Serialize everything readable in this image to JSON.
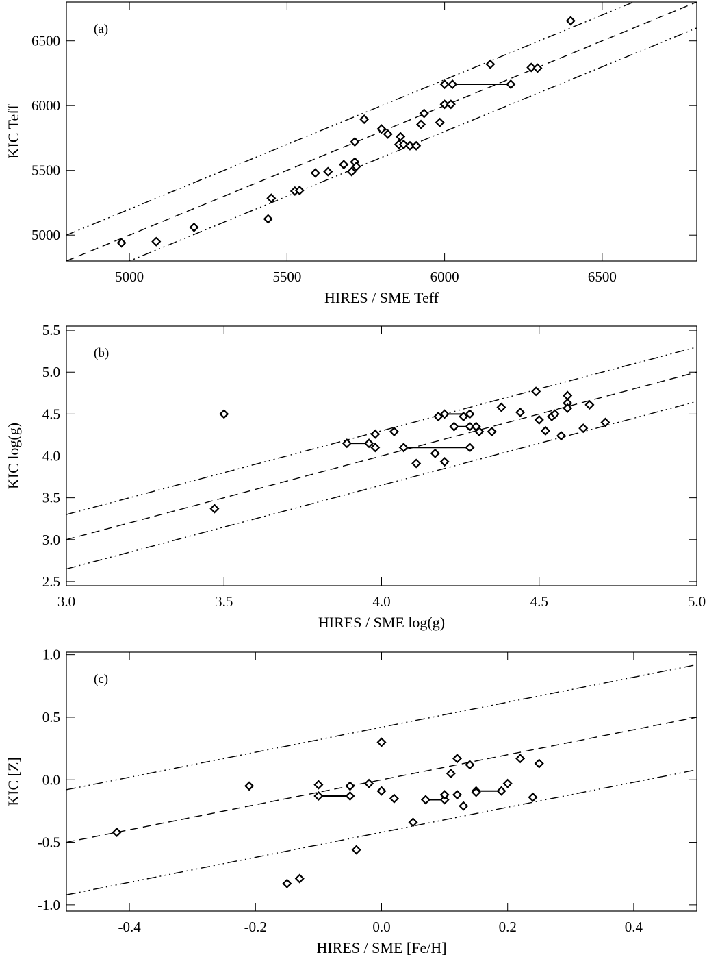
{
  "chart_data": [
    {
      "panel": "(a)",
      "type": "scatter",
      "xlabel": "HIRES / SME Teff",
      "ylabel": "KIC Teff",
      "xlim": [
        4800,
        6800
      ],
      "ylim": [
        4800,
        6800
      ],
      "xticks": [
        5000,
        5500,
        6000,
        6500
      ],
      "yticks": [
        5000,
        5500,
        6000,
        6500
      ],
      "reference_lines": [
        {
          "style": "dashed",
          "name": "one-to-one",
          "offset": 0
        },
        {
          "style": "dash-dot-dot",
          "name": "upper",
          "offset": 200
        },
        {
          "style": "dash-dot-dot",
          "name": "lower",
          "offset": -200
        }
      ],
      "points": [
        [
          4975,
          4940
        ],
        [
          5085,
          4950
        ],
        [
          5205,
          5060
        ],
        [
          5440,
          5125
        ],
        [
          5450,
          5285
        ],
        [
          5525,
          5340
        ],
        [
          5540,
          5345
        ],
        [
          5590,
          5480
        ],
        [
          5630,
          5490
        ],
        [
          5680,
          5545
        ],
        [
          5705,
          5490
        ],
        [
          5715,
          5565
        ],
        [
          5720,
          5530
        ],
        [
          5715,
          5720
        ],
        [
          5745,
          5895
        ],
        [
          5800,
          5820
        ],
        [
          5820,
          5780
        ],
        [
          5855,
          5700
        ],
        [
          5860,
          5760
        ],
        [
          5870,
          5700
        ],
        [
          5890,
          5690
        ],
        [
          5910,
          5690
        ],
        [
          5925,
          5855
        ],
        [
          5935,
          5940
        ],
        [
          5985,
          5870
        ],
        [
          6000,
          6010
        ],
        [
          6020,
          6010
        ],
        [
          6000,
          6165
        ],
        [
          6025,
          6165
        ],
        [
          6210,
          6165
        ],
        [
          6145,
          6320
        ],
        [
          6275,
          6295
        ],
        [
          6295,
          6290
        ],
        [
          6400,
          6655
        ]
      ],
      "connectors": [
        [
          [
            6025,
            6165
          ],
          [
            6210,
            6165
          ]
        ]
      ]
    },
    {
      "panel": "(b)",
      "type": "scatter",
      "xlabel": "HIRES / SME log(g)",
      "ylabel": "KIC log(g)",
      "xlim": [
        3.0,
        5.0
      ],
      "ylim": [
        2.45,
        5.55
      ],
      "xticks": [
        3.0,
        3.5,
        4.0,
        4.5,
        5.0
      ],
      "yticks": [
        2.5,
        3.0,
        3.5,
        4.0,
        4.5,
        5.0,
        5.5
      ],
      "reference_lines": [
        {
          "style": "dashed",
          "name": "one-to-one",
          "offset": 0
        },
        {
          "style": "dash-dot-dot",
          "name": "upper",
          "offset": 0.3
        },
        {
          "style": "dash-dot-dot",
          "name": "lower",
          "offset": -0.35
        }
      ],
      "points": [
        [
          3.47,
          3.37
        ],
        [
          3.5,
          4.5
        ],
        [
          3.89,
          4.15
        ],
        [
          3.96,
          4.15
        ],
        [
          3.98,
          4.1
        ],
        [
          3.98,
          4.26
        ],
        [
          4.04,
          4.29
        ],
        [
          4.07,
          4.1
        ],
        [
          4.11,
          3.91
        ],
        [
          4.17,
          4.03
        ],
        [
          4.2,
          3.93
        ],
        [
          4.18,
          4.47
        ],
        [
          4.2,
          4.5
        ],
        [
          4.23,
          4.35
        ],
        [
          4.26,
          4.47
        ],
        [
          4.28,
          4.5
        ],
        [
          4.28,
          4.35
        ],
        [
          4.28,
          4.1
        ],
        [
          4.3,
          4.35
        ],
        [
          4.31,
          4.29
        ],
        [
          4.35,
          4.29
        ],
        [
          4.38,
          4.58
        ],
        [
          4.44,
          4.52
        ],
        [
          4.49,
          4.77
        ],
        [
          4.5,
          4.43
        ],
        [
          4.52,
          4.3
        ],
        [
          4.54,
          4.47
        ],
        [
          4.55,
          4.5
        ],
        [
          4.57,
          4.24
        ],
        [
          4.59,
          4.72
        ],
        [
          4.59,
          4.63
        ],
        [
          4.59,
          4.57
        ],
        [
          4.64,
          4.33
        ],
        [
          4.66,
          4.61
        ],
        [
          4.71,
          4.4
        ]
      ],
      "connectors": [
        [
          [
            3.89,
            4.15
          ],
          [
            3.96,
            4.15
          ]
        ],
        [
          [
            4.07,
            4.1
          ],
          [
            4.28,
            4.1
          ]
        ],
        [
          [
            4.2,
            4.5
          ],
          [
            4.26,
            4.5
          ]
        ],
        [
          [
            4.23,
            4.35
          ],
          [
            4.31,
            4.35
          ]
        ]
      ]
    },
    {
      "panel": "(c)",
      "type": "scatter",
      "xlabel": "HIRES / SME [Fe/H]",
      "ylabel": "KIC [Z]",
      "xlim": [
        -0.5,
        0.5
      ],
      "ylim": [
        -1.05,
        1.02
      ],
      "xticks": [
        -0.4,
        -0.2,
        0.0,
        0.2,
        0.4
      ],
      "yticks": [
        -1.0,
        -0.5,
        0.0,
        0.5,
        1.0
      ],
      "reference_lines": [
        {
          "style": "dashed",
          "name": "one-to-one",
          "offset": 0
        },
        {
          "style": "dash-dot-dot",
          "name": "upper",
          "offset": 0.42
        },
        {
          "style": "dash-dot-dot",
          "name": "lower",
          "offset": -0.42
        }
      ],
      "points": [
        [
          -0.42,
          -0.42
        ],
        [
          -0.21,
          -0.05
        ],
        [
          -0.15,
          -0.83
        ],
        [
          -0.13,
          -0.79
        ],
        [
          -0.1,
          -0.04
        ],
        [
          -0.1,
          -0.13
        ],
        [
          -0.05,
          -0.13
        ],
        [
          -0.05,
          -0.05
        ],
        [
          -0.04,
          -0.56
        ],
        [
          -0.02,
          -0.03
        ],
        [
          0.0,
          0.3
        ],
        [
          0.0,
          -0.09
        ],
        [
          0.02,
          -0.15
        ],
        [
          0.05,
          -0.34
        ],
        [
          0.07,
          -0.16
        ],
        [
          0.1,
          -0.16
        ],
        [
          0.1,
          -0.12
        ],
        [
          0.11,
          0.05
        ],
        [
          0.12,
          0.17
        ],
        [
          0.13,
          -0.21
        ],
        [
          0.12,
          -0.12
        ],
        [
          0.14,
          0.12
        ],
        [
          0.15,
          -0.09
        ],
        [
          0.15,
          -0.1
        ],
        [
          0.19,
          -0.09
        ],
        [
          0.2,
          -0.03
        ],
        [
          0.22,
          0.17
        ],
        [
          0.24,
          -0.14
        ],
        [
          0.25,
          0.13
        ]
      ],
      "connectors": [
        [
          [
            -0.1,
            -0.13
          ],
          [
            -0.05,
            -0.13
          ]
        ],
        [
          [
            0.07,
            -0.16
          ],
          [
            0.1,
            -0.16
          ]
        ],
        [
          [
            0.15,
            -0.09
          ],
          [
            0.19,
            -0.09
          ]
        ]
      ]
    }
  ]
}
